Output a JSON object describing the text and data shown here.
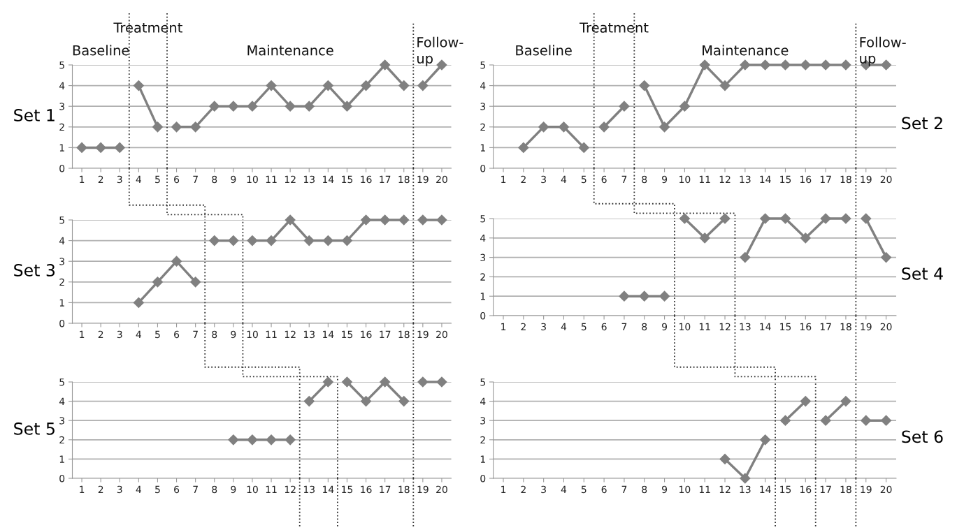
{
  "chart_data": [
    {
      "type": "line",
      "ylabel": "Set 1",
      "xlim": [
        0.5,
        20.5
      ],
      "xticks": [
        1,
        2,
        3,
        4,
        5,
        6,
        7,
        8,
        9,
        10,
        11,
        12,
        13,
        14,
        15,
        16,
        17,
        18,
        19,
        20
      ],
      "ylim": [
        0,
        5
      ],
      "yticks": [
        0,
        1,
        2,
        3,
        4,
        5
      ],
      "grid": "y",
      "marker": "diamond",
      "line_style": "solid",
      "annotations": [
        "Baseline",
        "Treatment",
        "Maintenance",
        "Follow-\nup"
      ],
      "ref_lines": [
        {
          "axis": "x",
          "value": 3.5,
          "line_style": "dotted",
          "color": "#333333"
        },
        {
          "axis": "x",
          "value": 5.5,
          "line_style": "dotted",
          "color": "#333333"
        },
        {
          "axis": "x",
          "value": 18.5,
          "line_style": "dotted",
          "color": "#333333"
        }
      ],
      "series": [
        {
          "color": "#808080",
          "x": [
            1,
            2,
            3
          ],
          "values": [
            1,
            1,
            1
          ]
        },
        {
          "color": "#808080",
          "x": [
            4,
            5
          ],
          "values": [
            4,
            2
          ]
        },
        {
          "color": "#808080",
          "x": [
            6,
            7,
            8,
            9,
            10,
            11,
            12,
            13,
            14,
            15,
            16,
            17,
            18
          ],
          "values": [
            2,
            2,
            3,
            3,
            3,
            4,
            3,
            3,
            4,
            3,
            4,
            5,
            4
          ]
        },
        {
          "color": "#808080",
          "x": [
            19,
            20
          ],
          "values": [
            4,
            5
          ]
        }
      ]
    },
    {
      "type": "line",
      "ylabel": "Set 2",
      "xlim": [
        0.5,
        20.5
      ],
      "xticks": [
        1,
        2,
        3,
        4,
        5,
        6,
        7,
        8,
        9,
        10,
        11,
        12,
        13,
        14,
        15,
        16,
        17,
        18,
        19,
        20
      ],
      "ylim": [
        0,
        5
      ],
      "yticks": [
        0,
        1,
        2,
        3,
        4,
        5
      ],
      "grid": "y",
      "marker": "diamond",
      "line_style": "solid",
      "annotations": [
        "Baseline",
        "Treatment",
        "Maintenance",
        "Follow-\nup"
      ],
      "ref_lines": [
        {
          "axis": "x",
          "value": 5.5,
          "line_style": "dotted",
          "color": "#333333"
        },
        {
          "axis": "x",
          "value": 7.5,
          "line_style": "dotted",
          "color": "#333333"
        },
        {
          "axis": "x",
          "value": 18.5,
          "line_style": "dotted",
          "color": "#333333"
        }
      ],
      "series": [
        {
          "color": "#808080",
          "x": [
            2,
            3,
            4,
            5
          ],
          "values": [
            1,
            2,
            2,
            1
          ]
        },
        {
          "color": "#808080",
          "x": [
            6,
            7
          ],
          "values": [
            2,
            3
          ]
        },
        {
          "color": "#808080",
          "x": [
            8,
            9,
            10,
            11,
            12,
            13,
            14,
            15,
            16,
            17,
            18
          ],
          "values": [
            4,
            2,
            3,
            5,
            4,
            5,
            5,
            5,
            5,
            5,
            5
          ]
        },
        {
          "color": "#808080",
          "x": [
            19,
            20
          ],
          "values": [
            5,
            5
          ]
        }
      ]
    },
    {
      "type": "line",
      "ylabel": "Set 3",
      "xlim": [
        0.5,
        20.5
      ],
      "xticks": [
        1,
        2,
        3,
        4,
        5,
        6,
        7,
        8,
        9,
        10,
        11,
        12,
        13,
        14,
        15,
        16,
        17,
        18,
        19,
        20
      ],
      "ylim": [
        0,
        5
      ],
      "yticks": [
        0,
        1,
        2,
        3,
        4,
        5
      ],
      "grid": "y",
      "marker": "diamond",
      "line_style": "solid",
      "ref_lines": [
        {
          "axis": "x",
          "value": 7.5,
          "line_style": "dotted",
          "color": "#333333"
        },
        {
          "axis": "x",
          "value": 9.5,
          "line_style": "dotted",
          "color": "#333333"
        },
        {
          "axis": "x",
          "value": 18.5,
          "line_style": "dotted",
          "color": "#333333"
        }
      ],
      "series": [
        {
          "color": "#808080",
          "x": [
            4,
            5,
            6,
            7
          ],
          "values": [
            1,
            2,
            3,
            2
          ]
        },
        {
          "color": "#808080",
          "x": [
            8,
            9
          ],
          "values": [
            4,
            4
          ]
        },
        {
          "color": "#808080",
          "x": [
            10,
            11,
            12,
            13,
            14,
            15,
            16,
            17,
            18
          ],
          "values": [
            4,
            4,
            5,
            4,
            4,
            4,
            5,
            5,
            5
          ]
        },
        {
          "color": "#808080",
          "x": [
            19,
            20
          ],
          "values": [
            5,
            5
          ]
        }
      ]
    },
    {
      "type": "line",
      "ylabel": "Set 4",
      "xlim": [
        0.5,
        20.5
      ],
      "xticks": [
        1,
        2,
        3,
        4,
        5,
        6,
        7,
        8,
        9,
        10,
        11,
        12,
        13,
        14,
        15,
        16,
        17,
        18,
        19,
        20
      ],
      "ylim": [
        0,
        5
      ],
      "yticks": [
        0,
        1,
        2,
        3,
        4,
        5
      ],
      "grid": "y",
      "marker": "diamond",
      "line_style": "solid",
      "ref_lines": [
        {
          "axis": "x",
          "value": 9.5,
          "line_style": "dotted",
          "color": "#333333"
        },
        {
          "axis": "x",
          "value": 12.5,
          "line_style": "dotted",
          "color": "#333333"
        },
        {
          "axis": "x",
          "value": 18.5,
          "line_style": "dotted",
          "color": "#333333"
        }
      ],
      "series": [
        {
          "color": "#808080",
          "x": [
            7,
            8,
            9
          ],
          "values": [
            1,
            1,
            1
          ]
        },
        {
          "color": "#808080",
          "x": [
            10,
            11,
            12
          ],
          "values": [
            5,
            4,
            5
          ]
        },
        {
          "color": "#808080",
          "x": [
            13,
            14,
            15,
            16,
            17,
            18
          ],
          "values": [
            3,
            5,
            5,
            4,
            5,
            5
          ]
        },
        {
          "color": "#808080",
          "x": [
            19,
            20
          ],
          "values": [
            5,
            3
          ]
        }
      ]
    },
    {
      "type": "line",
      "ylabel": "Set 5",
      "xlim": [
        0.5,
        20.5
      ],
      "xticks": [
        1,
        2,
        3,
        4,
        5,
        6,
        7,
        8,
        9,
        10,
        11,
        12,
        13,
        14,
        15,
        16,
        17,
        18,
        19,
        20
      ],
      "ylim": [
        0,
        5
      ],
      "yticks": [
        0,
        1,
        2,
        3,
        4,
        5
      ],
      "grid": "y",
      "marker": "diamond",
      "line_style": "solid",
      "ref_lines": [
        {
          "axis": "x",
          "value": 12.5,
          "line_style": "dotted",
          "color": "#333333"
        },
        {
          "axis": "x",
          "value": 14.5,
          "line_style": "dotted",
          "color": "#333333"
        },
        {
          "axis": "x",
          "value": 18.5,
          "line_style": "dotted",
          "color": "#333333"
        }
      ],
      "series": [
        {
          "color": "#808080",
          "x": [
            9,
            10,
            11,
            12
          ],
          "values": [
            2,
            2,
            2,
            2
          ]
        },
        {
          "color": "#808080",
          "x": [
            13,
            14
          ],
          "values": [
            4,
            5
          ]
        },
        {
          "color": "#808080",
          "x": [
            15,
            16,
            17,
            18
          ],
          "values": [
            5,
            4,
            5,
            4
          ]
        },
        {
          "color": "#808080",
          "x": [
            19,
            20
          ],
          "values": [
            5,
            5
          ]
        }
      ]
    },
    {
      "type": "line",
      "ylabel": "Set 6",
      "xlim": [
        0.5,
        20.5
      ],
      "xticks": [
        1,
        2,
        3,
        4,
        5,
        6,
        7,
        8,
        9,
        10,
        11,
        12,
        13,
        14,
        15,
        16,
        17,
        18,
        19,
        20
      ],
      "ylim": [
        0,
        5
      ],
      "yticks": [
        0,
        1,
        2,
        3,
        4,
        5
      ],
      "grid": "y",
      "marker": "diamond",
      "line_style": "solid",
      "ref_lines": [
        {
          "axis": "x",
          "value": 14.5,
          "line_style": "dotted",
          "color": "#333333"
        },
        {
          "axis": "x",
          "value": 16.5,
          "line_style": "dotted",
          "color": "#333333"
        },
        {
          "axis": "x",
          "value": 18.5,
          "line_style": "dotted",
          "color": "#333333"
        }
      ],
      "series": [
        {
          "color": "#808080",
          "x": [
            12,
            13,
            14
          ],
          "values": [
            1,
            0,
            2
          ]
        },
        {
          "color": "#808080",
          "x": [
            15,
            16
          ],
          "values": [
            3,
            4
          ]
        },
        {
          "color": "#808080",
          "x": [
            17,
            18
          ],
          "values": [
            3,
            4
          ]
        },
        {
          "color": "#808080",
          "x": [
            19,
            20
          ],
          "values": [
            3,
            3
          ]
        }
      ]
    }
  ]
}
